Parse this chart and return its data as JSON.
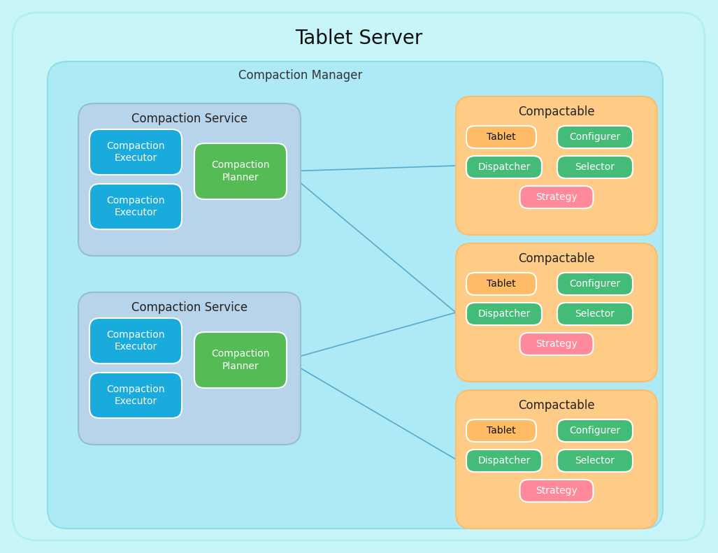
{
  "title": "Tablet Server",
  "fig_bg": "#c8f5f8",
  "outer_bg": "#c8f5f8",
  "outer_edge": "#b0eef5",
  "manager_bg": "#aeeaf5",
  "manager_edge": "#8edcec",
  "manager_label": "Compaction Manager",
  "service_bg": "#b8d4ea",
  "service_edge": "#98bcd8",
  "service_label": "Compaction Service",
  "executor_color": "#1aabdd",
  "executor_edge": "#ffffff",
  "executor_label": "Compaction\nExecutor",
  "planner_color": "#55bb55",
  "planner_edge": "#ffffff",
  "planner_label": "Compaction\nPlanner",
  "compactable_bg": "#ffcc88",
  "compactable_edge": "#ffbb66",
  "compactable_label": "Compactable",
  "tablet_color": "#ffbb66",
  "tablet_edge": "#ffffff",
  "tablet_label": "Tablet",
  "configurer_color": "#44bb77",
  "configurer_edge": "#ffffff",
  "configurer_label": "Configurer",
  "dispatcher_color": "#44bb77",
  "dispatcher_edge": "#ffffff",
  "dispatcher_label": "Dispatcher",
  "selector_color": "#44bb77",
  "selector_edge": "#ffffff",
  "selector_label": "Selector",
  "strategy_color": "#ff8899",
  "strategy_edge": "#ffffff",
  "strategy_label": "Strategy",
  "line_color": "#55aacc",
  "line_width": 1.2
}
